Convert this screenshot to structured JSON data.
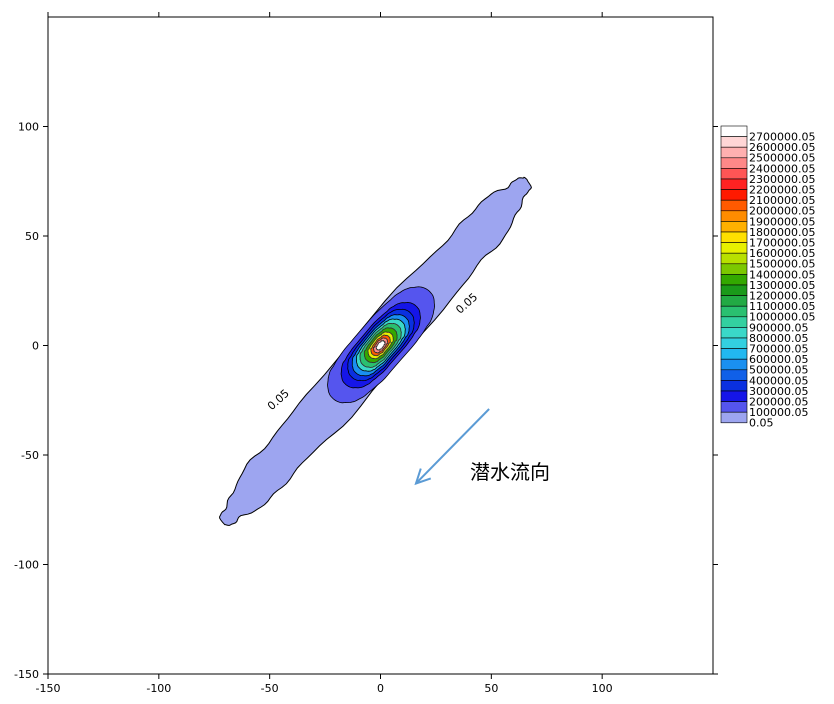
{
  "chart_data": {
    "type": "contour",
    "xlim": [
      -150,
      150
    ],
    "ylim": [
      -150,
      150
    ],
    "x_ticks": [
      -150,
      -100,
      -50,
      0,
      50,
      100
    ],
    "y_ticks": [
      100,
      50,
      0,
      -50,
      -100,
      -150
    ],
    "x_tick_labels": [
      "-150",
      "-100",
      "-50",
      "0",
      "50",
      "100"
    ],
    "y_tick_labels": [
      "100",
      "50",
      "0",
      "-50",
      "-100",
      "-150"
    ],
    "legend_levels": [
      {
        "label": "2700000.05",
        "color": "#ffffff"
      },
      {
        "label": "2600000.05",
        "color": "#ffd6d6"
      },
      {
        "label": "2500000.05",
        "color": "#ffb0b0"
      },
      {
        "label": "2400000.05",
        "color": "#ff8888"
      },
      {
        "label": "2300000.05",
        "color": "#ff5555"
      },
      {
        "label": "2200000.05",
        "color": "#ff2222"
      },
      {
        "label": "2100000.05",
        "color": "#ff1a00"
      },
      {
        "label": "2000000.05",
        "color": "#ff5a00"
      },
      {
        "label": "1900000.05",
        "color": "#ff8c00"
      },
      {
        "label": "1800000.05",
        "color": "#ffb000"
      },
      {
        "label": "1700000.05",
        "color": "#ffe000"
      },
      {
        "label": "1600000.05",
        "color": "#e8f000"
      },
      {
        "label": "1500000.05",
        "color": "#b8e000"
      },
      {
        "label": "1400000.05",
        "color": "#7cc800"
      },
      {
        "label": "1300000.05",
        "color": "#33a800"
      },
      {
        "label": "1200000.05",
        "color": "#1a9a1a"
      },
      {
        "label": "1100000.05",
        "color": "#22aa44"
      },
      {
        "label": "1000000.05",
        "color": "#2ac070"
      },
      {
        "label": "900000.05",
        "color": "#33d0a0"
      },
      {
        "label": "800000.05",
        "color": "#3ad8c8"
      },
      {
        "label": "700000.05",
        "color": "#33d0e0"
      },
      {
        "label": "600000.05",
        "color": "#22b8f0"
      },
      {
        "label": "500000.05",
        "color": "#1a90f0"
      },
      {
        "label": "400000.05",
        "color": "#1060e8"
      },
      {
        "label": "300000.05",
        "color": "#0a30e0"
      },
      {
        "label": "200000.05",
        "color": "#1515e8"
      },
      {
        "label": "100000.05",
        "color": "#5555ee"
      },
      {
        "label": "0.05",
        "color": "#9da5f0"
      }
    ],
    "contour_labels": [
      "0.05",
      "0.05"
    ],
    "plume_center": [
      0,
      0
    ],
    "plume_extent": {
      "upper_right": [
        67,
        75
      ],
      "lower_left": [
        -70,
        -82
      ]
    },
    "annotation": {
      "text": "潜水流向",
      "arrow_from": [
        49,
        -29
      ],
      "arrow_to": [
        16,
        -63
      ]
    }
  }
}
